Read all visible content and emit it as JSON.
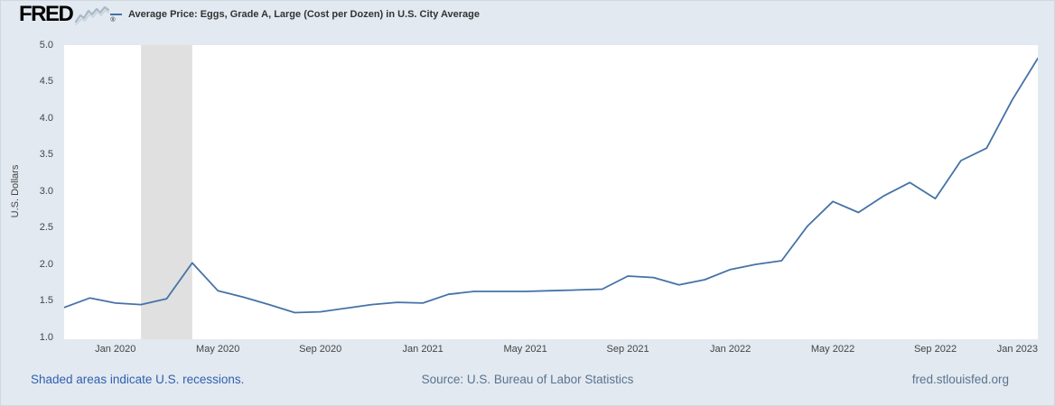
{
  "header": {
    "logo_text": "FRED",
    "registered_mark": "®"
  },
  "legend": {
    "series_label": "Average Price: Eggs, Grade A, Large (Cost per Dozen) in U.S. City Average"
  },
  "footer": {
    "recession_note": "Shaded areas indicate U.S. recessions.",
    "source": "Source: U.S. Bureau of Labor Statistics",
    "site": "fred.stlouisfed.org"
  },
  "chart_data": {
    "type": "line",
    "title": "Average Price: Eggs, Grade A, Large (Cost per Dozen) in U.S. City Average",
    "xlabel": "",
    "ylabel": "U.S. Dollars",
    "ylim": [
      1.0,
      5.0
    ],
    "grid": false,
    "legend_position": "top",
    "line_color": "#4572a7",
    "recession_color": "#e0e0e0",
    "y_ticks": [
      "1.0",
      "1.5",
      "2.0",
      "2.5",
      "3.0",
      "3.5",
      "4.0",
      "4.5",
      "5.0"
    ],
    "x_ticks": [
      "Jan 2020",
      "May 2020",
      "Sep 2020",
      "Jan 2021",
      "May 2021",
      "Sep 2021",
      "Jan 2022",
      "May 2022",
      "Sep 2022",
      "Jan 2023"
    ],
    "recessions": [
      {
        "start": "Feb 2020",
        "end": "Apr 2020"
      }
    ],
    "x": [
      "Nov 2019",
      "Dec 2019",
      "Jan 2020",
      "Feb 2020",
      "Mar 2020",
      "Apr 2020",
      "May 2020",
      "Jun 2020",
      "Jul 2020",
      "Aug 2020",
      "Sep 2020",
      "Oct 2020",
      "Nov 2020",
      "Dec 2020",
      "Jan 2021",
      "Feb 2021",
      "Mar 2021",
      "Apr 2021",
      "May 2021",
      "Jun 2021",
      "Jul 2021",
      "Aug 2021",
      "Sep 2021",
      "Oct 2021",
      "Nov 2021",
      "Dec 2021",
      "Jan 2022",
      "Feb 2022",
      "Mar 2022",
      "Apr 2022",
      "May 2022",
      "Jun 2022",
      "Jul 2022",
      "Aug 2022",
      "Sep 2022",
      "Oct 2022",
      "Nov 2022",
      "Dec 2022",
      "Jan 2023"
    ],
    "values": [
      1.41,
      1.54,
      1.47,
      1.45,
      1.53,
      2.02,
      1.64,
      1.55,
      1.45,
      1.34,
      1.35,
      1.4,
      1.45,
      1.48,
      1.47,
      1.59,
      1.63,
      1.63,
      1.63,
      1.64,
      1.65,
      1.66,
      1.84,
      1.82,
      1.72,
      1.79,
      1.93,
      2.0,
      2.05,
      2.52,
      2.86,
      2.71,
      2.94,
      3.12,
      2.9,
      3.42,
      3.59,
      4.25,
      4.82
    ]
  }
}
